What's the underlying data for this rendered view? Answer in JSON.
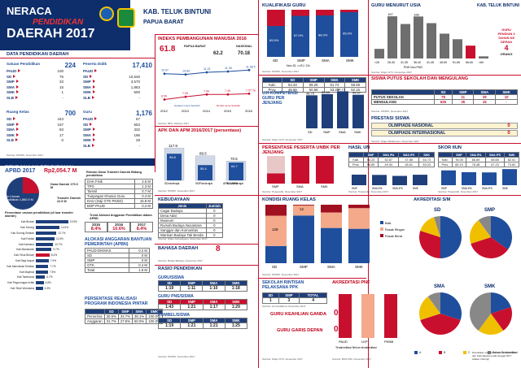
{
  "header": {
    "line1": "NERACA",
    "line2": "PENDIDIKAN",
    "line3": "DAERAH 2017",
    "region1": "KAB. TELUK BINTUNI",
    "region2": "PAPUA BARAT"
  },
  "data_pendidikan": {
    "title": "DATA PENDIDIKAN DAERAH",
    "satuan": {
      "label": "Satuan Pendidikan",
      "total": "224",
      "rows": [
        {
          "k": "PAUD",
          "v": "100"
        },
        {
          "k": "SD",
          "v": "75"
        },
        {
          "k": "SMP",
          "v": "33"
        },
        {
          "k": "SMA",
          "v": "15"
        },
        {
          "k": "SMK",
          "v": "1"
        },
        {
          "k": "SLB",
          "v": "-"
        }
      ]
    },
    "peserta": {
      "label": "Peserta Didik",
      "total": "17,410",
      "rows": [
        {
          "k": "PAUD",
          "v": "-"
        },
        {
          "k": "SD",
          "v": "10,546"
        },
        {
          "k": "SMP",
          "v": "3,570"
        },
        {
          "k": "SMA",
          "v": "1,863"
        },
        {
          "k": "SMK",
          "v": "500"
        },
        {
          "k": "SLB",
          "v": "-"
        }
      ]
    },
    "ruang": {
      "label": "Ruang Kelas",
      "total": "700",
      "rows": [
        {
          "k": "SD",
          "v": "443"
        },
        {
          "k": "SMP",
          "v": "157"
        },
        {
          "k": "SMA",
          "v": "83"
        },
        {
          "k": "SMK",
          "v": "17"
        },
        {
          "k": "SLB",
          "v": "0"
        }
      ]
    },
    "guru": {
      "label": "Guru",
      "total": "1,176",
      "rows": [
        {
          "k": "PAUD",
          "v": "67"
        },
        {
          "k": "SD",
          "v": "553"
        },
        {
          "k": "SMP",
          "v": "332"
        },
        {
          "k": "SMA",
          "v": "196"
        },
        {
          "k": "SMK",
          "v": "28"
        },
        {
          "k": "SLB",
          "v": "-"
        }
      ]
    },
    "source": "Sumber: PDSPK, November 2017"
  },
  "pendanaan": {
    "title": "PENDANAAN PENDIDIKAN",
    "apbd_label": "APBD 2017",
    "apbd_value": "Rp2,054.7 M",
    "non_urusan": "Non Urusan Pendidikan 1,860.9 M",
    "dana_daerah": "Dana Daerah 170.0 M",
    "transfer": "Transfer Daerah 22.9 M",
    "rincian_title": "Rincian Dana Transfer Daerah Bidang pendidikan",
    "rincian": [
      {
        "k": "DAK Fisik",
        "v": "4.6 M"
      },
      {
        "k": "TPG",
        "v": "1.3 M"
      },
      {
        "k": "Tamsil",
        "v": "0.7 M"
      },
      {
        "k": "Tunjangan Khusus Guru",
        "v": "0.4 M"
      },
      {
        "k": "DAU (Gaji GTK PNSD)",
        "v": "15.8 M"
      },
      {
        "k": "BOP PAUD",
        "v": "0.2 M"
      }
    ],
    "trend_title": "Trend Alokasi Anggaran Pendidikan dalam APBD",
    "trend_years": [
      "2015",
      "2016",
      "2017"
    ],
    "trend_values": [
      "8.4%",
      "10.6%",
      "8.4%"
    ],
    "dist_title": "Persentase urusan pendidikan (di luar transfer daerah)",
    "districts": [
      {
        "n": "Kab Bintuni",
        "p": "19.9%"
      },
      {
        "n": "Kab Sorong",
        "p": "14.5%"
      },
      {
        "n": "Kab Sorong Selatan",
        "p": "12.7%"
      },
      {
        "n": "Kab Fakfak",
        "p": "11.5%"
      },
      {
        "n": "Kab Kaimana",
        "p": "10.7%"
      },
      {
        "n": "Kab Manokwari",
        "p": "9.7%"
      },
      {
        "n": "Kab Teluk Bintuni",
        "p": "8.4%"
      },
      {
        "n": "Kab Raja Ampat",
        "p": "7.9%"
      },
      {
        "n": "Kab Manokwari Selatan",
        "p": "7.7%"
      },
      {
        "n": "Kab Maybrat",
        "p": "7.5%"
      },
      {
        "n": "Kab Tambrauw",
        "p": "5.7%"
      },
      {
        "n": "Kab Pegunungan Arfak",
        "p": "4.8%"
      },
      {
        "n": "Kab Teluk Wondama",
        "p": "4.3%"
      }
    ],
    "bantuan_title": "ALOKASI ANGGARAN BANTUAN PEMERINTAH (APBN)",
    "bantuan": [
      {
        "k": "PAUD-DIKMAS",
        "v": "0.2 M"
      },
      {
        "k": "SD",
        "v": "0 M"
      },
      {
        "k": "SMP",
        "v": "0 M"
      },
      {
        "k": "GTK",
        "v": "0.4 M"
      },
      {
        "k": "Total",
        "v": "1.9 M"
      }
    ],
    "pip_title": "PERSENTASE REALISASI PROGRAM INDONESIA PINTAR",
    "pip_head": [
      "",
      "SD",
      "SMP",
      "SMA",
      "SMK"
    ],
    "pip_rows": [
      [
        "Penerima",
        "30.5%",
        "34.7%",
        "38.1%",
        "100.0%"
      ],
      [
        "Anggaran",
        "31.7%",
        "27.5%",
        "50.0%",
        "100.0%"
      ]
    ]
  },
  "ipm": {
    "title": "INDEKS PEMBANGUNAN MANUSIA 2016",
    "value": "61.8",
    "papua_barat_label": "PAPUA BARAT",
    "papua_barat": "62.2",
    "nasional_label": "NASIONAL",
    "nasional": "70.18",
    "years": [
      "2012",
      "2013",
      "2014",
      "2015",
      "2016"
    ],
    "hls_label": "Harapan Lama Sekolah",
    "rls_label": "Rerata Lama Sekolah",
    "hls": [
      10.97,
      10.84,
      11.21,
      11.35,
      11.58
    ],
    "rls": [
      6.59,
      7.05,
      7.44,
      7.45,
      7.57
    ],
    "hls_labels": [
      "10.97",
      "10.84",
      "11.21",
      "11.35",
      "11.58 Tahun"
    ],
    "rls_labels": [
      "6.59",
      "7.05",
      "7.44",
      "7.45",
      "7.57 Tahun"
    ],
    "source": "Sumber: BPS, Oktober 2017"
  },
  "apk": {
    "title": "APK DAN APM 2016/2017 (persentase)",
    "categories": [
      "SD/sederajat",
      "SMP/sederajat",
      "SMA/sederajat"
    ],
    "apk": [
      117.9,
      89.5,
      70.5
    ],
    "apm": [
      96.8,
      55.4,
      64.7
    ],
    "legend_apk": "APK",
    "legend_apm": "APM",
    "source": "Sumber: PDSPK, November 2017"
  },
  "kebudayaan": {
    "title": "KEBUDAYAAN",
    "head": [
      "Jenis",
      "Jumlah"
    ],
    "rows": [
      [
        "Cagar Budaya",
        "0"
      ],
      [
        "Desa Adat",
        "0"
      ],
      [
        "Museum",
        "0"
      ],
      [
        "Rumah Budaya Nusantara",
        "0"
      ],
      [
        "Sanggar dan Komunitas",
        "0"
      ],
      [
        "Warisan Budaya Tak Benda",
        "0"
      ]
    ],
    "source": "Sumber: Ditjen Kebudayaan, November 2017"
  },
  "bahasa": {
    "title": "BAHASA DAERAH",
    "value": "8",
    "source": "Sumber: Badan Bahasa, November 2017"
  },
  "rasio": {
    "title": "RASIO PENDIDIKAN",
    "guru_siswa_label": "GURU/SISWA",
    "head": [
      "SD",
      "SMP",
      "SMA",
      "SMK"
    ],
    "guru_siswa": [
      "1:19",
      "1:11",
      "1:10",
      "1:18"
    ],
    "guru_pns_label": "GURU PNS/SISWA",
    "guru_pns": [
      "1:43",
      "1:21",
      "1:17",
      "1:29"
    ],
    "rombel_label": "ROMBEL/SISWA",
    "rombel": [
      "1:19",
      "1:21",
      "1:21",
      "1:25"
    ],
    "source": "Sumber: PDSPK, November 2017"
  },
  "kualifikasi": {
    "title": "KUALIFIKASI GURU",
    "categories": [
      "SD",
      "SMP",
      "SMA",
      "SMK"
    ],
    "s1": [
      65.5,
      87.0,
      88.0,
      95.0
    ],
    "s1_labels": [
      "65.5%",
      "87.0%",
      "88.0%",
      "95.0%"
    ],
    "legend_non": "Non-S1",
    "legend_s1": ">=S1 / D4",
    "source": "Sumber: PDSPK, November 2017"
  },
  "guru_usia": {
    "title": "GURU MENURUT USIA",
    "categories": [
      "<26",
      "26-30",
      "31-35",
      "36-40",
      "41-45",
      "46-50",
      "51-55",
      "56-60",
      ">60"
    ],
    "values": [
      45,
      197,
      161,
      196,
      165,
      116,
      90,
      60,
      10
    ],
    "labels": [
      "",
      "197",
      "",
      "196",
      "",
      "",
      "",
      "",
      ""
    ],
    "legend_pns": "PNS",
    "legend_nonpns": "Non PNS",
    "callout_value": "4",
    "callout_text": "GURU PENSIUN 3 TAHUN KE DEPAN",
    "callout_unit": "ORANG",
    "source": "Sumber: Ditjen GTK, November 2017"
  },
  "un": {
    "title": "UJI KOMPETENSI GURU PER JENJANG",
    "table_head": [
      "",
      "SD",
      "SMP",
      "SMA",
      "SMK"
    ],
    "rows": [
      [
        "Kab.",
        "54.33",
        "59.25",
        "61.74",
        "59.59"
      ],
      [
        "Prov.",
        "46.66",
        "50.68",
        "53.21",
        "52.16"
      ]
    ],
    "categories": [
      "SD",
      "SMP",
      "SMA",
      "SMK"
    ],
    "values": [
      48.79,
      50.59,
      54.73,
      49.57
    ],
    "labels": [
      "48.79",
      "50.59",
      "54.73",
      "49.57"
    ],
    "source": "Sumber: Ditjen GTK, November 2017"
  },
  "putus": {
    "title": "SISWA PUTUS SEKOLAH DAN MENGULANG",
    "head": [
      "SD",
      "SMP",
      "SMA",
      "SMK"
    ],
    "rows": [
      {
        "k": "PUTUS SEKOLAH",
        "v": [
          "78",
          "11",
          "29",
          "10"
        ]
      },
      {
        "k": "MENGULANG",
        "v": [
          "635",
          "35",
          "15",
          "-"
        ]
      }
    ],
    "source": "Sumber: PDSPK, November 2017"
  },
  "prestasi": {
    "title": "PRESTASI SISWA",
    "items": [
      {
        "k": "OLIMPIADE NASIONAL",
        "v": "0"
      },
      {
        "k": "OLIMPIADE INTERNASIONAL",
        "v": "0"
      }
    ],
    "source": "Sumber: Ditjen Dikdasmen, November 2017"
  },
  "unbk": {
    "title": "PERSENTASE PESERTA UNBK PER JENJANG",
    "categories": [
      "SMP",
      "SMA",
      "SMK"
    ],
    "values": [
      36.76,
      100,
      100
    ],
    "source": "Sumber: Puspendik, November 2017"
  },
  "hasil_un": {
    "title": "HASIL UN",
    "head": [
      "SMP",
      "SMA IPA",
      "SMA IPS",
      "SMK"
    ],
    "rows": [
      [
        "Kab.",
        "54.23",
        "52.87",
        "47.85",
        "53.73"
      ],
      [
        "Prov.",
        "56.89",
        "49.34",
        "45.61",
        "53.03"
      ]
    ],
    "categories": [
      "SMP",
      "SMA IPA",
      "SMA IPS",
      "SMK"
    ],
    "values": [
      54.23,
      52.87,
      47.85,
      53.73
    ],
    "source": "Sumber: Puspendik, November 2017"
  },
  "skor_iiun": {
    "title": "SKOR IIUN",
    "head": [
      "SMP",
      "SMA IPA",
      "SMA IPS",
      "SMK"
    ],
    "rows": [
      [
        "Kab.",
        "76.05",
        "66.69",
        "65.65",
        "82.61"
      ],
      [
        "Prov.",
        "65.19",
        "76.48",
        "67.23",
        "73.82"
      ]
    ],
    "categories": [
      "SMP",
      "SMA IPA",
      "SMA IPS",
      "SMK"
    ],
    "values": [
      76.05,
      66.69,
      65.65,
      82.61
    ],
    "source": "Sumber: Puspendik, November 2017"
  },
  "kondisi": {
    "title": "KONDISI RUANG KELAS",
    "categories": [
      "SD",
      "SMP",
      "SMA",
      "SMK"
    ],
    "baik": [
      130,
      128,
      50,
      10
    ],
    "rusak_ringan": [
      230,
      27,
      22,
      6
    ],
    "rusak_berat": [
      83,
      2,
      11,
      1
    ],
    "labels_mid": [
      "128",
      "12",
      "",
      ""
    ],
    "legend": [
      "Baik",
      "Rusak Ringan",
      "Rusak Berat"
    ],
    "source": "Sumber: PDSPK, November 2017"
  },
  "akreditasi": {
    "title": "AKREDITASI S/M",
    "charts": [
      {
        "name": "SD"
      },
      {
        "name": "SMP"
      },
      {
        "name": "SMA"
      },
      {
        "name": "SMK"
      }
    ],
    "legend": [
      "A",
      "B",
      "C",
      "Belum Terakreditasi"
    ],
    "note": "Disediakan oleh Kementerian Pendidikan dan Kebudayaan pada tanggal 2017 silakan hubungi",
    "source": "Sumber: BAN S/M, November 2017"
  },
  "ppk": {
    "title": "SEKOLAH RINTISAN PELAKSANA PPK",
    "head": [
      "SD",
      "SMP",
      "TOTAL"
    ],
    "values": [
      "1",
      "3",
      "4"
    ],
    "source": "Sumber: Kemendikbud, November 2017"
  },
  "guru_keahlian": {
    "title": "GURU KEAHLIAN GANDA",
    "value": "0"
  },
  "guru_daerah": {
    "title": "GURU GARIS DEPAN",
    "value": "0",
    "source": "Sumber: Ditjen GTK, November 2017"
  },
  "pnf": {
    "title": "AKREDITASI PNF",
    "categories": [
      "PAUD",
      "LKP",
      "PKBM"
    ],
    "legend": [
      "Terakreditasi",
      "Belum terakreditasi"
    ],
    "source": "Sumber: BAN PNF, November 2017"
  }
}
